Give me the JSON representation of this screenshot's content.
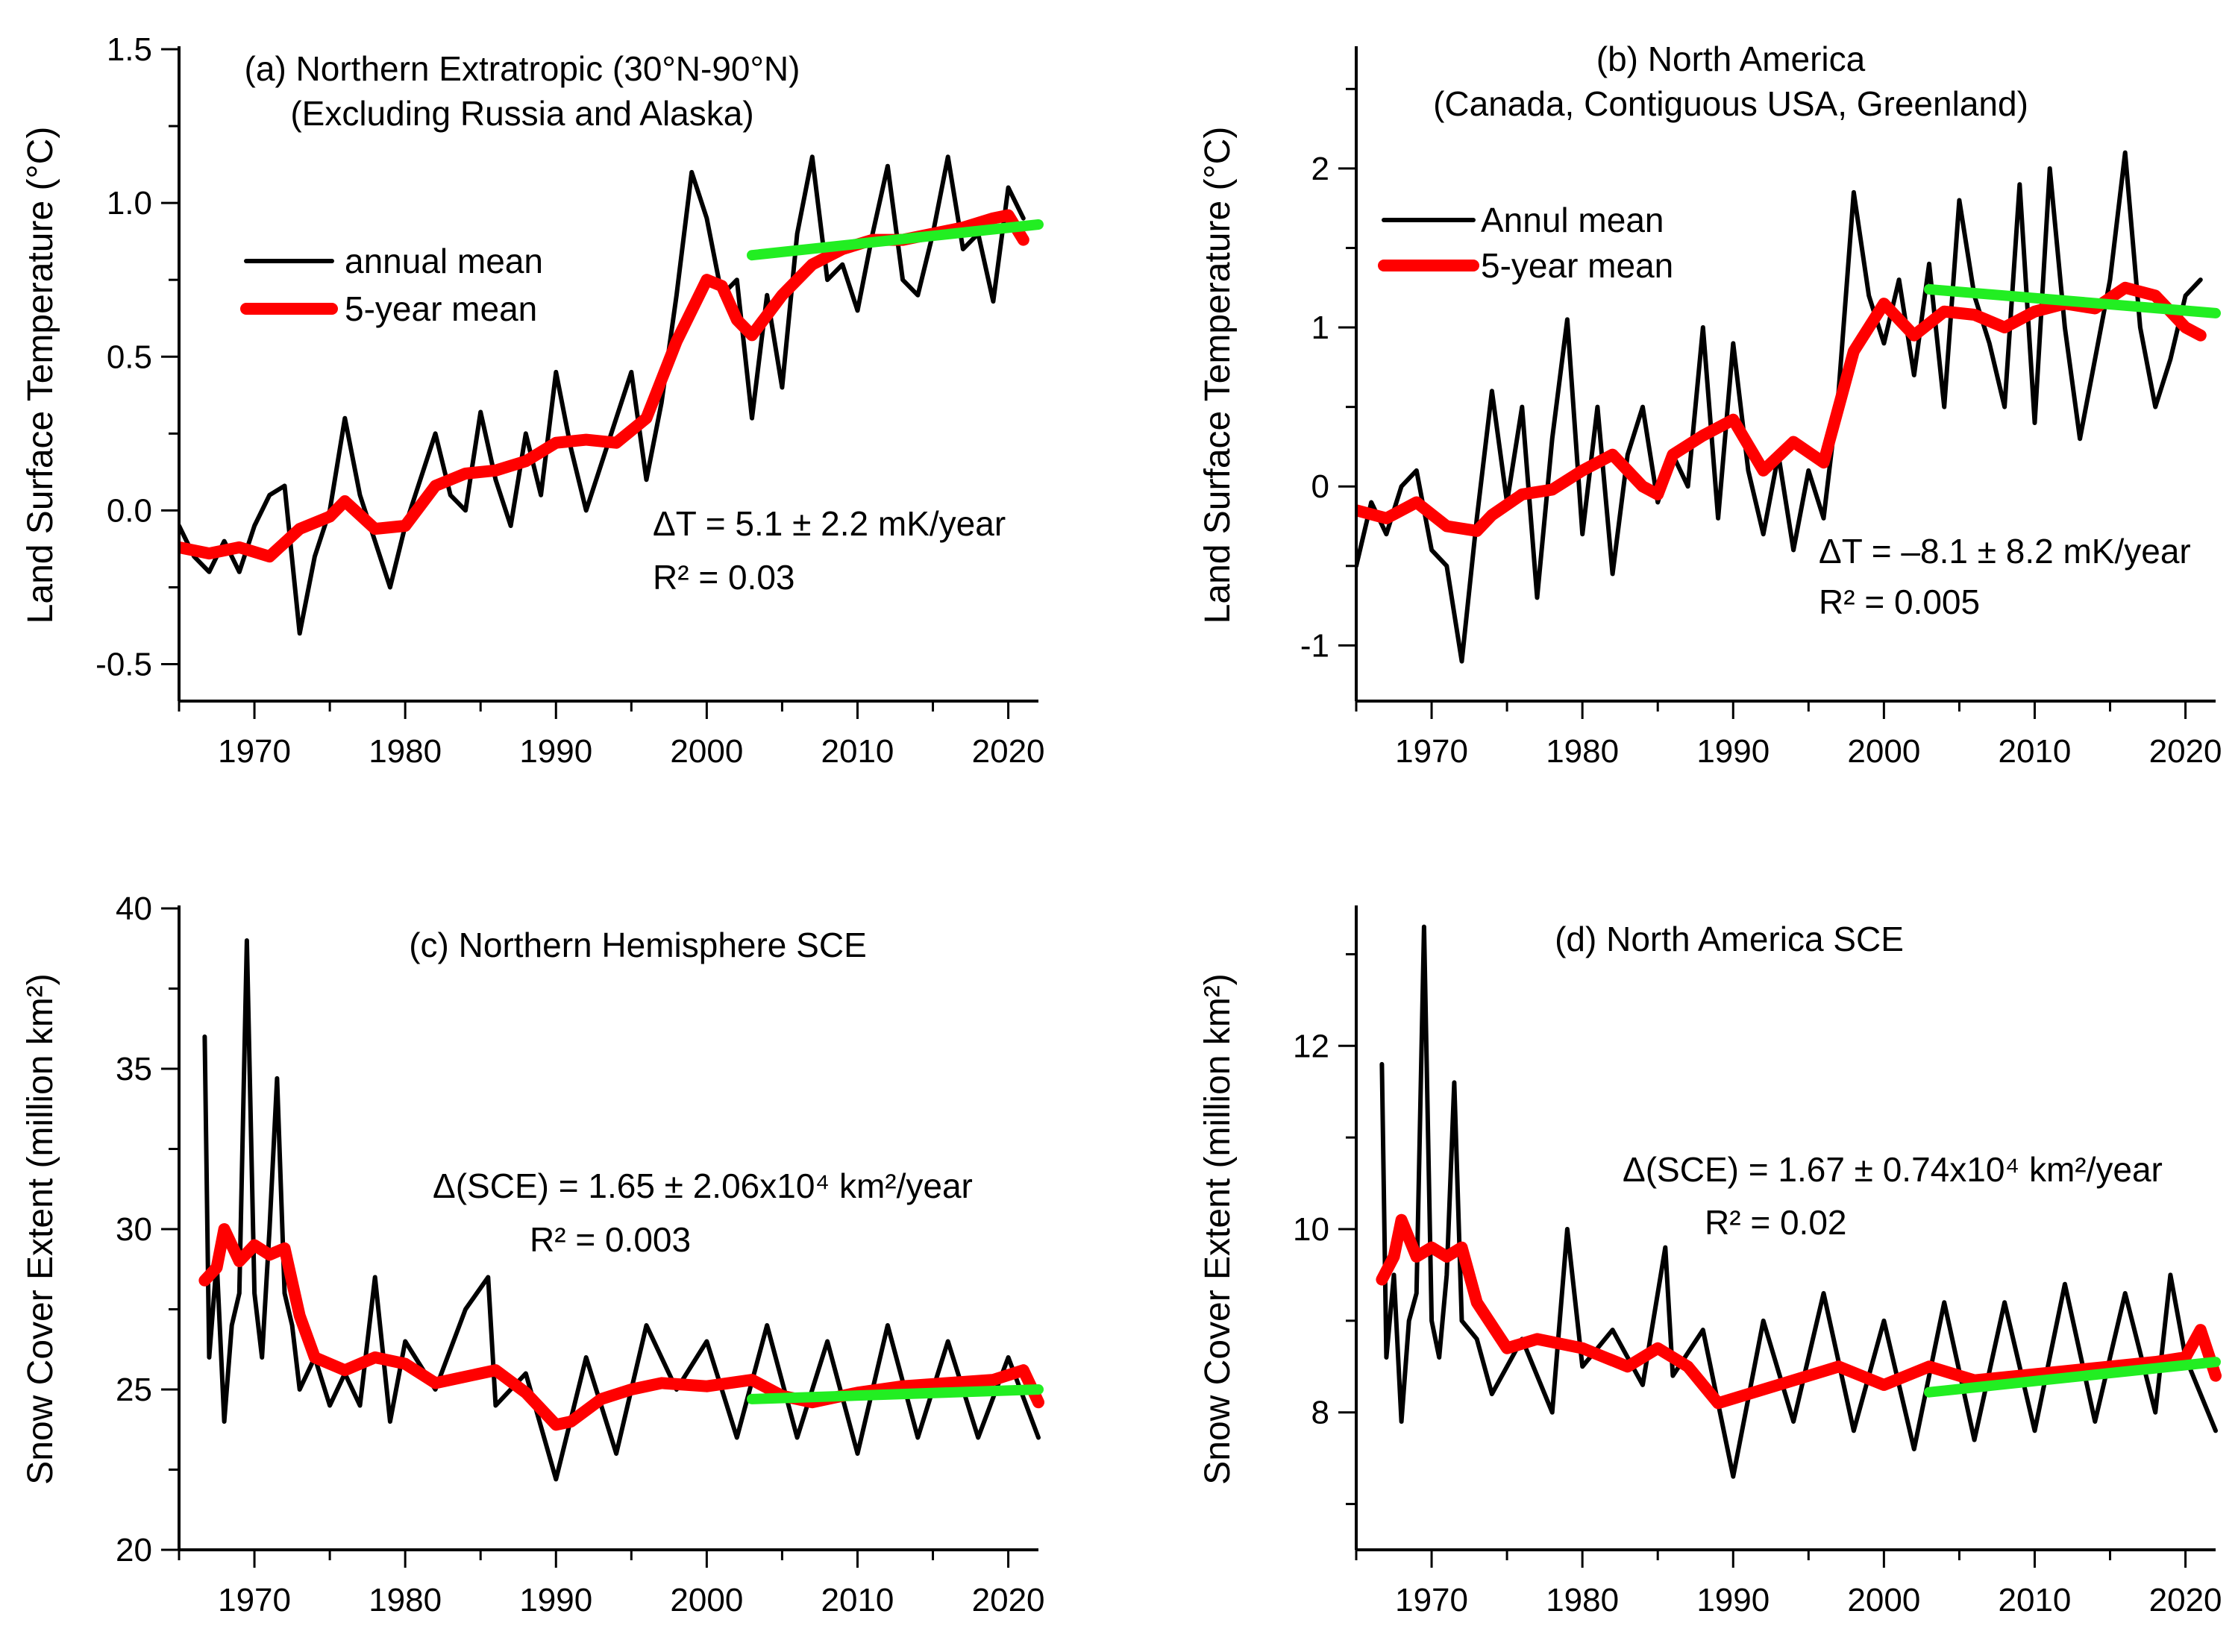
{
  "chart_data": [
    {
      "id": "a",
      "type": "line",
      "title_lines": [
        "(a) Northern Extratropic (30°N-90°N)",
        "(Excluding Russia and Alaska)"
      ],
      "ylabel": "Land Surface Temperature (°C)",
      "xlabel": "",
      "xlim": [
        1965,
        2022
      ],
      "ylim": [
        -0.62,
        1.5
      ],
      "xticks": [
        1970,
        1980,
        1990,
        2000,
        2010,
        2020
      ],
      "yticks": [
        -0.5,
        0.0,
        0.5,
        1.0,
        1.5
      ],
      "ytick_labels": [
        "-0.5",
        "0.0",
        "0.5",
        "1.0",
        "1.5"
      ],
      "legend": [
        "annual mean",
        "5-year mean"
      ],
      "annotation_lines": [
        "ΔT = 5.1 ± 2.2 mK/year",
        "R² = 0.03"
      ],
      "series": [
        {
          "name": "annual mean",
          "color": "#000000",
          "x": [
            1965,
            1966,
            1967,
            1968,
            1969,
            1970,
            1971,
            1972,
            1973,
            1974,
            1975,
            1976,
            1977,
            1978,
            1979,
            1980,
            1981,
            1982,
            1983,
            1984,
            1985,
            1986,
            1987,
            1988,
            1989,
            1990,
            1991,
            1992,
            1993,
            1994,
            1995,
            1996,
            1997,
            1998,
            1999,
            2000,
            2001,
            2002,
            2003,
            2004,
            2005,
            2006,
            2007,
            2008,
            2009,
            2010,
            2011,
            2012,
            2013,
            2014,
            2015,
            2016,
            2017,
            2018,
            2019,
            2020,
            2021
          ],
          "values": [
            -0.05,
            -0.15,
            -0.2,
            -0.1,
            -0.2,
            -0.05,
            0.05,
            0.08,
            -0.4,
            -0.15,
            0.0,
            0.3,
            0.05,
            -0.1,
            -0.25,
            -0.05,
            0.1,
            0.25,
            0.05,
            0.0,
            0.32,
            0.1,
            -0.05,
            0.25,
            0.05,
            0.45,
            0.2,
            0.0,
            0.15,
            0.3,
            0.45,
            0.1,
            0.35,
            0.7,
            1.1,
            0.95,
            0.7,
            0.75,
            0.3,
            0.7,
            0.4,
            0.9,
            1.15,
            0.75,
            0.8,
            0.65,
            0.9,
            1.12,
            0.75,
            0.7,
            0.9,
            1.15,
            0.85,
            0.9,
            0.68,
            1.05,
            0.95
          ]
        },
        {
          "name": "5-year mean",
          "color": "#ff0000",
          "x": [
            1965,
            1967,
            1969,
            1971,
            1973,
            1975,
            1976,
            1978,
            1980,
            1982,
            1984,
            1986,
            1988,
            1990,
            1992,
            1994,
            1996,
            1998,
            2000,
            2001,
            2002,
            2003,
            2005,
            2007,
            2009,
            2011,
            2013,
            2015,
            2017,
            2019,
            2020,
            2021
          ],
          "values": [
            -0.12,
            -0.14,
            -0.12,
            -0.15,
            -0.06,
            -0.02,
            0.03,
            -0.06,
            -0.05,
            0.08,
            0.12,
            0.13,
            0.16,
            0.22,
            0.23,
            0.22,
            0.3,
            0.55,
            0.75,
            0.73,
            0.62,
            0.57,
            0.7,
            0.8,
            0.85,
            0.88,
            0.88,
            0.9,
            0.92,
            0.95,
            0.96,
            0.88
          ]
        },
        {
          "name": "trend",
          "color": "#22ee22",
          "x": [
            2003,
            2022
          ],
          "values": [
            0.83,
            0.93
          ]
        }
      ]
    },
    {
      "id": "b",
      "type": "line",
      "title_lines": [
        "(b) North America",
        "(Canada, Contiguous USA, Greenland)"
      ],
      "ylabel": "Land Surface Temperature (°C)",
      "xlabel": "",
      "xlim": [
        1965,
        2022
      ],
      "ylim": [
        -1.35,
        2.75
      ],
      "xticks": [
        1970,
        1980,
        1990,
        2000,
        2010,
        2020
      ],
      "yticks": [
        -1,
        0,
        1,
        2
      ],
      "ytick_labels": [
        "-1",
        "0",
        "1",
        "2"
      ],
      "legend": [
        "Annul mean",
        "5-year mean"
      ],
      "annotation_lines": [
        "ΔT = –8.1 ± 8.2 mK/year",
        "R² = 0.005"
      ],
      "series": [
        {
          "name": "Annul mean",
          "color": "#000000",
          "x": [
            1965,
            1966,
            1967,
            1968,
            1969,
            1970,
            1971,
            1972,
            1973,
            1974,
            1975,
            1976,
            1977,
            1978,
            1979,
            1980,
            1981,
            1982,
            1983,
            1984,
            1985,
            1986,
            1987,
            1988,
            1989,
            1990,
            1991,
            1992,
            1993,
            1994,
            1995,
            1996,
            1997,
            1998,
            1999,
            2000,
            2001,
            2002,
            2003,
            2004,
            2005,
            2006,
            2007,
            2008,
            2009,
            2010,
            2011,
            2012,
            2013,
            2014,
            2015,
            2016,
            2017,
            2018,
            2019,
            2020,
            2021
          ],
          "values": [
            -0.5,
            -0.1,
            -0.3,
            0.0,
            0.1,
            -0.4,
            -0.5,
            -1.1,
            -0.2,
            0.6,
            -0.1,
            0.5,
            -0.7,
            0.3,
            1.05,
            -0.3,
            0.5,
            -0.55,
            0.2,
            0.5,
            -0.1,
            0.2,
            0.0,
            1.0,
            -0.2,
            0.9,
            0.1,
            -0.3,
            0.2,
            -0.4,
            0.1,
            -0.2,
            0.6,
            1.85,
            1.2,
            0.9,
            1.3,
            0.7,
            1.4,
            0.5,
            1.8,
            1.2,
            0.9,
            0.5,
            1.9,
            0.4,
            2.0,
            1.0,
            0.3,
            0.8,
            1.3,
            2.1,
            1.0,
            0.5,
            0.8,
            1.2,
            1.3
          ]
        },
        {
          "name": "5-year mean",
          "color": "#ff0000",
          "x": [
            1965,
            1967,
            1969,
            1971,
            1973,
            1974,
            1976,
            1978,
            1980,
            1982,
            1984,
            1985,
            1986,
            1988,
            1990,
            1992,
            1994,
            1996,
            1998,
            2000,
            2002,
            2004,
            2006,
            2008,
            2010,
            2012,
            2014,
            2016,
            2018,
            2020,
            2021
          ],
          "values": [
            -0.15,
            -0.2,
            -0.1,
            -0.25,
            -0.28,
            -0.18,
            -0.05,
            -0.02,
            0.1,
            0.2,
            0.0,
            -0.05,
            0.2,
            0.32,
            0.42,
            0.1,
            0.28,
            0.15,
            0.85,
            1.15,
            0.95,
            1.1,
            1.08,
            1.0,
            1.1,
            1.15,
            1.12,
            1.25,
            1.2,
            1.0,
            0.95
          ]
        },
        {
          "name": "trend",
          "color": "#22ee22",
          "x": [
            2003,
            2022
          ],
          "values": [
            1.24,
            1.09
          ]
        }
      ]
    },
    {
      "id": "c",
      "type": "line",
      "title_lines": [
        "(c) Northern Hemisphere SCE"
      ],
      "ylabel": "Snow Cover Extent (million km²)",
      "xlabel": "",
      "xlim": [
        1965,
        2022
      ],
      "ylim": [
        20,
        40
      ],
      "xticks": [
        1970,
        1980,
        1990,
        2000,
        2010,
        2020
      ],
      "yticks": [
        20,
        25,
        30,
        35,
        40
      ],
      "ytick_labels": [
        "20",
        "25",
        "30",
        "35",
        "40"
      ],
      "legend": [],
      "annotation_lines": [
        "Δ(SCE) = 1.65 ± 2.06x10⁴ km²/year",
        "R² = 0.003"
      ],
      "series": [
        {
          "name": "annual mean",
          "color": "#000000",
          "x": [
            1966.7,
            1967,
            1967.5,
            1968,
            1968.5,
            1969,
            1969.5,
            1970,
            1970.5,
            1971,
            1971.5,
            1972,
            1972.5,
            1973,
            1974,
            1975,
            1976,
            1977,
            1978,
            1979,
            1980,
            1982,
            1984,
            1985.5,
            1986,
            1988,
            1990,
            1992,
            1994,
            1996,
            1998,
            2000,
            2002,
            2004,
            2006,
            2008,
            2010,
            2012,
            2014,
            2016,
            2018,
            2020,
            2022
          ],
          "values": [
            36.0,
            26.0,
            29.0,
            24.0,
            27.0,
            28.0,
            39.0,
            28.0,
            26.0,
            30.0,
            34.7,
            28.0,
            27.0,
            25.0,
            26.0,
            24.5,
            25.5,
            24.5,
            28.5,
            24.0,
            26.5,
            25.0,
            27.5,
            28.5,
            24.5,
            25.5,
            22.2,
            26.0,
            23.0,
            27.0,
            25.0,
            26.5,
            23.5,
            27.0,
            23.5,
            26.5,
            23.0,
            27.0,
            23.5,
            26.5,
            23.5,
            26.0,
            23.5
          ]
        },
        {
          "name": "5-year mean",
          "color": "#ff0000",
          "x": [
            1966.7,
            1967.5,
            1968,
            1969,
            1970,
            1971,
            1972,
            1973,
            1974,
            1976,
            1978,
            1980,
            1982,
            1984,
            1986,
            1988,
            1990,
            1991,
            1993,
            1995,
            1997,
            2000,
            2003,
            2005,
            2007,
            2010,
            2013,
            2016,
            2019,
            2021,
            2022
          ],
          "values": [
            28.4,
            28.8,
            30.0,
            29.0,
            29.5,
            29.2,
            29.4,
            27.3,
            26.0,
            25.6,
            26.0,
            25.8,
            25.2,
            25.4,
            25.6,
            24.9,
            23.9,
            24.0,
            24.7,
            25.0,
            25.2,
            25.1,
            25.3,
            24.8,
            24.6,
            24.9,
            25.1,
            25.2,
            25.3,
            25.6,
            24.6
          ]
        },
        {
          "name": "trend",
          "color": "#22ee22",
          "x": [
            2003,
            2022
          ],
          "values": [
            24.7,
            25.0
          ]
        }
      ]
    },
    {
      "id": "d",
      "type": "line",
      "title_lines": [
        "(d) North America SCE"
      ],
      "ylabel": "Snow Cover Extent (million km²)",
      "xlabel": "",
      "xlim": [
        1965,
        2022
      ],
      "ylim": [
        6.5,
        13.5
      ],
      "xticks": [
        1970,
        1980,
        1990,
        2000,
        2010,
        2020
      ],
      "yticks": [
        8,
        10,
        12
      ],
      "ytick_labels": [
        "8",
        "10",
        "12"
      ],
      "legend": [],
      "annotation_lines": [
        "Δ(SCE) = 1.67 ± 0.74x10⁴ km²/year",
        "R² = 0.02"
      ],
      "series": [
        {
          "name": "annual mean",
          "color": "#000000",
          "x": [
            1966.7,
            1967,
            1967.5,
            1968,
            1968.5,
            1969,
            1969.5,
            1970,
            1970.5,
            1971,
            1971.5,
            1972,
            1973,
            1974,
            1976,
            1978,
            1979,
            1980,
            1982,
            1984,
            1985.5,
            1986,
            1988,
            1990,
            1992,
            1994,
            1996,
            1998,
            2000,
            2002,
            2004,
            2006,
            2008,
            2010,
            2012,
            2014,
            2016,
            2018,
            2019,
            2020,
            2022
          ],
          "values": [
            11.8,
            8.6,
            9.5,
            7.9,
            9.0,
            9.3,
            13.3,
            9.0,
            8.6,
            9.5,
            11.6,
            9.0,
            8.8,
            8.2,
            8.8,
            8.0,
            10.0,
            8.5,
            8.9,
            8.3,
            9.8,
            8.4,
            8.9,
            7.3,
            9.0,
            7.9,
            9.3,
            7.8,
            9.0,
            7.6,
            9.2,
            7.7,
            9.2,
            7.8,
            9.4,
            7.9,
            9.3,
            8.0,
            9.5,
            8.6,
            7.8
          ]
        },
        {
          "name": "5-year mean",
          "color": "#ff0000",
          "x": [
            1966.7,
            1967.5,
            1968,
            1969,
            1970,
            1971,
            1972,
            1973,
            1975,
            1977,
            1980,
            1983,
            1985,
            1987,
            1989,
            1991,
            1993,
            1995,
            1997,
            2000,
            2003,
            2006,
            2009,
            2012,
            2015,
            2018,
            2020,
            2021,
            2022
          ],
          "values": [
            9.45,
            9.7,
            10.1,
            9.7,
            9.8,
            9.7,
            9.8,
            9.2,
            8.7,
            8.8,
            8.7,
            8.5,
            8.7,
            8.5,
            8.1,
            8.2,
            8.3,
            8.4,
            8.5,
            8.3,
            8.5,
            8.35,
            8.4,
            8.45,
            8.5,
            8.55,
            8.6,
            8.9,
            8.4
          ]
        },
        {
          "name": "trend",
          "color": "#22ee22",
          "x": [
            2003,
            2022
          ],
          "values": [
            8.22,
            8.55
          ]
        }
      ]
    }
  ]
}
